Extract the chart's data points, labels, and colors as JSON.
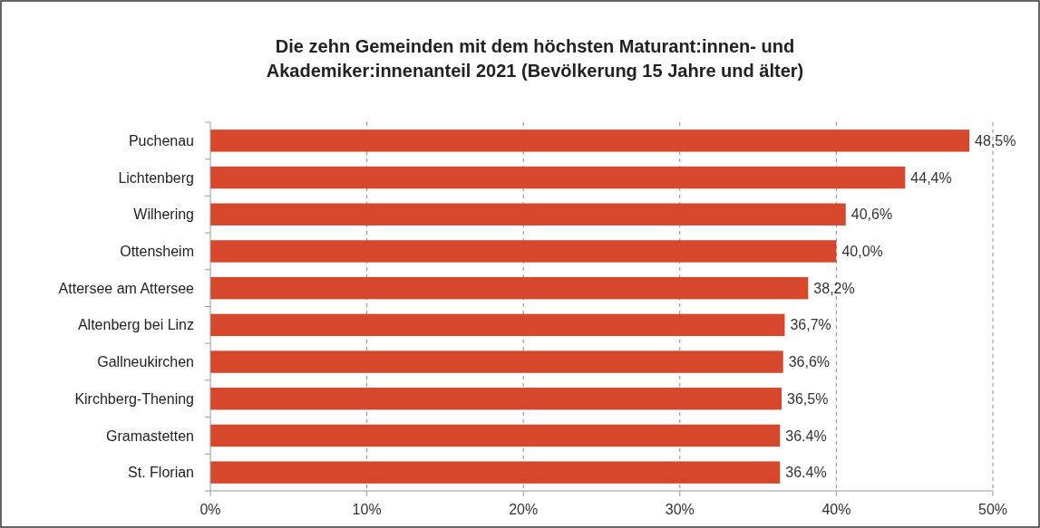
{
  "chart_data": {
    "type": "bar",
    "orientation": "horizontal",
    "title": "Die zehn Gemeinden mit dem höchsten Maturant:innen- und\nAkademiker:innenanteil 2021 (Bevölkerung 15 Jahre und älter)",
    "categories": [
      "Puchenau",
      "Lichtenberg",
      "Wilhering",
      "Ottensheim",
      "Attersee am Attersee",
      "Altenberg bei Linz",
      "Gallneukirchen",
      "Kirchberg-Thening",
      "Gramastetten",
      "St. Florian"
    ],
    "values": [
      48.5,
      44.4,
      40.6,
      40.0,
      38.2,
      36.7,
      36.6,
      36.5,
      36.4,
      36.4
    ],
    "value_labels": [
      "48,5%",
      "44,4%",
      "40,6%",
      "40,0%",
      "38,2%",
      "36,7%",
      "36,6%",
      "36,5%",
      "36.4%",
      "36.4%"
    ],
    "color": "#d6472b",
    "xlim": [
      0,
      50
    ],
    "xticks": [
      {
        "value": 0,
        "label": "0%"
      },
      {
        "value": 10,
        "label": "10%"
      },
      {
        "value": 20,
        "label": "20%"
      },
      {
        "value": 30,
        "label": "30%"
      },
      {
        "value": 40,
        "label": "40%"
      },
      {
        "value": 50,
        "label": "50%"
      }
    ],
    "grid": "x"
  }
}
